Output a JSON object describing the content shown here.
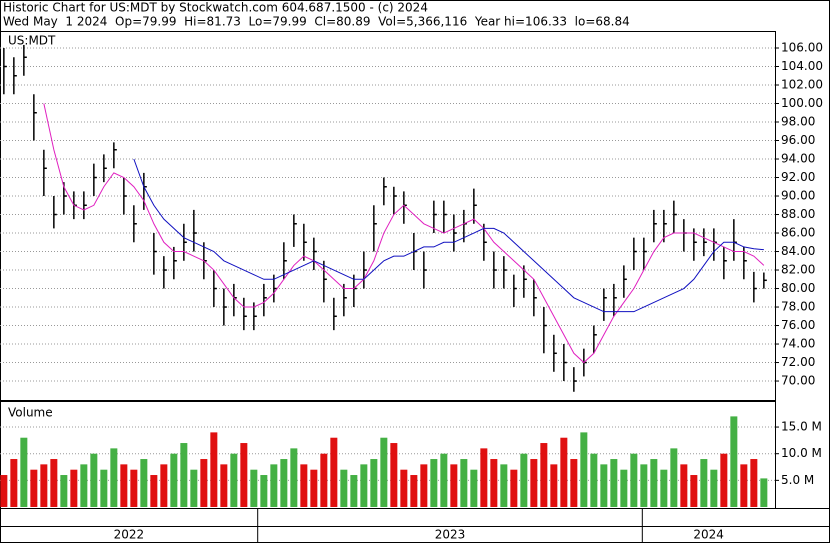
{
  "chart_data": {
    "type": "ohlc",
    "title": "Historic Chart for US:MDT by Stockwatch.com 604.687.1500 - (c) 2024",
    "subtitle": "Wed May  1 2024  Op=79.99  Hi=81.73  Lo=79.99  Cl=80.89  Vol=5,366,116  Year hi=106.33  lo=68.84",
    "price_label": "US:MDT",
    "volume_label": "Volume",
    "xlim": [
      2022.33,
      2024.345
    ],
    "xticks": [
      2023,
      2024
    ],
    "year_labels": [
      "2022",
      "2023",
      "2024"
    ],
    "x": [
      2022.34,
      2022.366,
      2022.392,
      2022.418,
      2022.444,
      2022.47,
      2022.496,
      2022.522,
      2022.548,
      2022.574,
      2022.6,
      2022.626,
      2022.652,
      2022.678,
      2022.704,
      2022.73,
      2022.756,
      2022.782,
      2022.808,
      2022.834,
      2022.86,
      2022.886,
      2022.912,
      2022.938,
      2022.964,
      2022.99,
      2023.016,
      2023.042,
      2023.068,
      2023.094,
      2023.12,
      2023.146,
      2023.172,
      2023.198,
      2023.224,
      2023.25,
      2023.276,
      2023.302,
      2023.328,
      2023.354,
      2023.38,
      2023.406,
      2023.432,
      2023.458,
      2023.484,
      2023.51,
      2023.536,
      2023.562,
      2023.588,
      2023.614,
      2023.64,
      2023.666,
      2023.692,
      2023.718,
      2023.744,
      2023.77,
      2023.796,
      2023.822,
      2023.848,
      2023.874,
      2023.9,
      2023.926,
      2023.952,
      2023.978,
      2024.004,
      2024.03,
      2024.056,
      2024.082,
      2024.108,
      2024.134,
      2024.16,
      2024.186,
      2024.212,
      2024.238,
      2024.264,
      2024.29,
      2024.316
    ],
    "high": [
      106,
      105,
      106.33,
      101,
      95,
      90,
      91.5,
      90.5,
      90.5,
      93.5,
      94.5,
      95.8,
      92,
      89,
      92.5,
      86,
      83.5,
      84.5,
      87,
      88.5,
      85,
      82,
      80,
      80.5,
      79,
      78.5,
      80.5,
      81.5,
      85,
      88,
      87,
      85.5,
      83,
      79,
      80.5,
      81.5,
      84,
      89,
      92,
      91,
      90.5,
      86,
      84,
      89.5,
      89.5,
      88,
      88.5,
      90.8,
      87,
      84,
      83.5,
      81.5,
      82.5,
      81,
      78,
      75,
      74,
      71.5,
      73.5,
      76,
      80,
      80.5,
      82.5,
      85.5,
      85.5,
      88.5,
      88.5,
      89.5,
      87.5,
      86.5,
      86.5,
      86.5,
      84.5,
      87.5,
      84.5,
      81.8,
      81.73
    ],
    "low": [
      101,
      101,
      103,
      96,
      90,
      86.5,
      88,
      87.5,
      87.5,
      90,
      91.5,
      93,
      88,
      85,
      88.5,
      81.5,
      80,
      81,
      83,
      84,
      81,
      78,
      76,
      77,
      75.5,
      75.5,
      77,
      78.5,
      81,
      84.5,
      83,
      82,
      78.5,
      75.5,
      77,
      78,
      80,
      84,
      89,
      88,
      87,
      82,
      80,
      86,
      86,
      84,
      85,
      87,
      83,
      80,
      80,
      78,
      79,
      77,
      73,
      71,
      70,
      68.84,
      70.5,
      73,
      76.5,
      77,
      79,
      82,
      82,
      85,
      85,
      86,
      84,
      83,
      83.5,
      83,
      81,
      83,
      81,
      78.5,
      79.99
    ],
    "close": [
      104,
      103,
      105,
      99,
      93,
      88,
      90,
      89,
      89,
      92,
      93,
      95,
      90,
      87,
      91,
      84,
      82,
      83,
      85,
      86,
      83,
      80,
      78,
      79,
      77,
      77,
      79,
      80,
      83,
      87,
      85,
      84,
      81,
      77,
      79,
      80,
      82,
      87,
      91,
      90,
      89,
      84,
      82,
      88,
      88,
      86,
      87,
      89,
      85,
      82,
      82,
      80,
      81,
      79,
      76,
      73,
      72,
      70,
      72,
      75,
      79,
      79,
      81,
      84,
      84,
      87,
      87,
      88,
      86,
      85,
      85,
      85,
      83,
      85,
      83,
      80,
      80.89
    ],
    "ylim": [
      67.95,
      107.73
    ],
    "yticks": [
      {
        "value": 70,
        "label": "70.00"
      },
      {
        "value": 72,
        "label": "72.00"
      },
      {
        "value": 74,
        "label": "74.00"
      },
      {
        "value": 76,
        "label": "76.00"
      },
      {
        "value": 78,
        "label": "78.00"
      },
      {
        "value": 80,
        "label": "80.00"
      },
      {
        "value": 82,
        "label": "82.00"
      },
      {
        "value": 84,
        "label": "84.00"
      },
      {
        "value": 86,
        "label": "86.00"
      },
      {
        "value": 88,
        "label": "88.00"
      },
      {
        "value": 90,
        "label": "90.00"
      },
      {
        "value": 92,
        "label": "92.00"
      },
      {
        "value": 94,
        "label": "94.00"
      },
      {
        "value": 96,
        "label": "96.00"
      },
      {
        "value": 98,
        "label": "98.00"
      },
      {
        "value": 100,
        "label": "100.00"
      },
      {
        "value": 102,
        "label": "102.00"
      },
      {
        "value": 104,
        "label": "104.00"
      },
      {
        "value": 106,
        "label": "106.00"
      }
    ],
    "bar_color": "#000000",
    "moving_averages": [
      {
        "color": "#e020c0",
        "values": [
          null,
          null,
          null,
          null,
          100,
          95,
          91,
          89,
          88.5,
          89,
          91,
          92.5,
          92,
          91,
          89.5,
          87,
          85,
          84,
          84,
          83.5,
          83,
          82,
          80.5,
          79,
          78,
          78,
          78.5,
          79.5,
          81,
          82.5,
          83.5,
          83,
          82,
          81,
          80,
          80,
          81,
          83,
          86,
          88,
          89,
          88,
          87,
          86.5,
          86,
          86.5,
          87,
          87.5,
          86.5,
          85,
          84,
          83,
          82,
          81,
          79,
          77,
          75,
          73,
          72,
          73,
          75,
          77,
          78.5,
          80,
          82,
          84,
          85.5,
          86,
          86,
          86,
          85.5,
          85,
          84.5,
          84,
          84,
          83.5,
          82.5
        ]
      },
      {
        "color": "#1010c0",
        "values": [
          null,
          null,
          null,
          null,
          null,
          null,
          null,
          null,
          null,
          null,
          null,
          null,
          null,
          94,
          91,
          89,
          87.5,
          86.5,
          85.5,
          85,
          84.5,
          84,
          83,
          82.5,
          82,
          81.5,
          81,
          81,
          81.5,
          82,
          82.5,
          83,
          82.5,
          82,
          81.5,
          81,
          81,
          82,
          83,
          83.5,
          83.5,
          84,
          84.5,
          84.5,
          85,
          85,
          85.5,
          86,
          86.5,
          86.5,
          86,
          85,
          84,
          83,
          82,
          81,
          80,
          79,
          78.5,
          78,
          77.5,
          77.5,
          77.5,
          77.5,
          78,
          78.5,
          79,
          79.5,
          80,
          81,
          82.5,
          84,
          85,
          85,
          84.5,
          84.3,
          84.2
        ]
      }
    ],
    "volume": [
      6,
      9,
      13,
      7,
      8,
      9,
      6,
      7,
      8,
      10,
      7,
      11,
      8,
      7,
      9,
      6,
      8,
      10,
      12,
      7,
      9,
      14,
      8,
      10,
      12,
      7,
      6,
      8,
      9,
      11,
      8,
      7,
      10,
      13,
      7,
      6,
      8,
      9,
      13,
      12,
      7,
      6,
      8,
      9,
      10,
      8,
      9,
      7,
      11,
      9,
      8,
      7,
      10,
      9,
      12,
      8,
      13,
      9,
      14,
      10,
      8,
      9,
      7,
      10,
      8,
      9,
      7,
      11,
      8,
      6,
      9,
      7,
      10,
      17,
      8,
      9,
      5.366116
    ],
    "volume_ylim": [
      0,
      19.7
    ],
    "volume_yticks": [
      {
        "value": 5,
        "label": "5.0 M"
      },
      {
        "value": 10,
        "label": "10.0 M"
      },
      {
        "value": 15,
        "label": "15.0 M"
      }
    ],
    "up_color": "#44b044",
    "down_color": "#e01010",
    "grid": true
  }
}
